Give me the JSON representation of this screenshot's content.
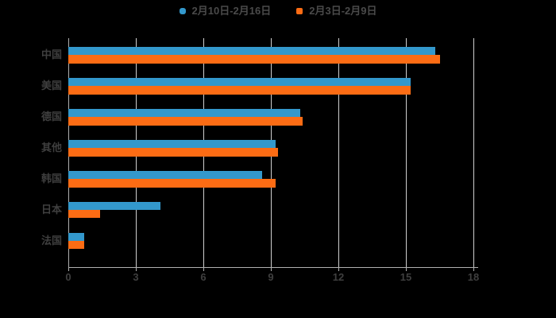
{
  "background_color": "#000000",
  "legend": {
    "items": [
      {
        "label": "2月10日-2月16日",
        "color": "#3398cc",
        "marker": "rounded-square"
      },
      {
        "label": "2月3日-2月9日",
        "color": "#fc6c14",
        "marker": "square"
      }
    ]
  },
  "chart_data": {
    "type": "bar",
    "orientation": "horizontal",
    "title": "",
    "xlabel": "",
    "ylabel": "",
    "categories": [
      "中国",
      "美国",
      "德国",
      "其他",
      "韩国",
      "日本",
      "法国"
    ],
    "series": [
      {
        "name": "2月10日-2月16日",
        "color": "#3398cc",
        "values": [
          16.3,
          15.2,
          10.3,
          9.2,
          8.6,
          4.1,
          0.7
        ]
      },
      {
        "name": "2月3日-2月9日",
        "color": "#fc6c14",
        "values": [
          16.5,
          15.2,
          10.4,
          9.3,
          9.2,
          1.4,
          0.7
        ]
      }
    ],
    "xlim": [
      0,
      18
    ],
    "xticks": [
      "0",
      "3",
      "6",
      "9",
      "12",
      "15",
      "18"
    ],
    "grid": "vertical-gridlines-on",
    "legend_position": "top-center",
    "grid_color": "#cfcfcf",
    "axis_color": "#b0b0b0",
    "label_color": "#3f3f3f"
  }
}
